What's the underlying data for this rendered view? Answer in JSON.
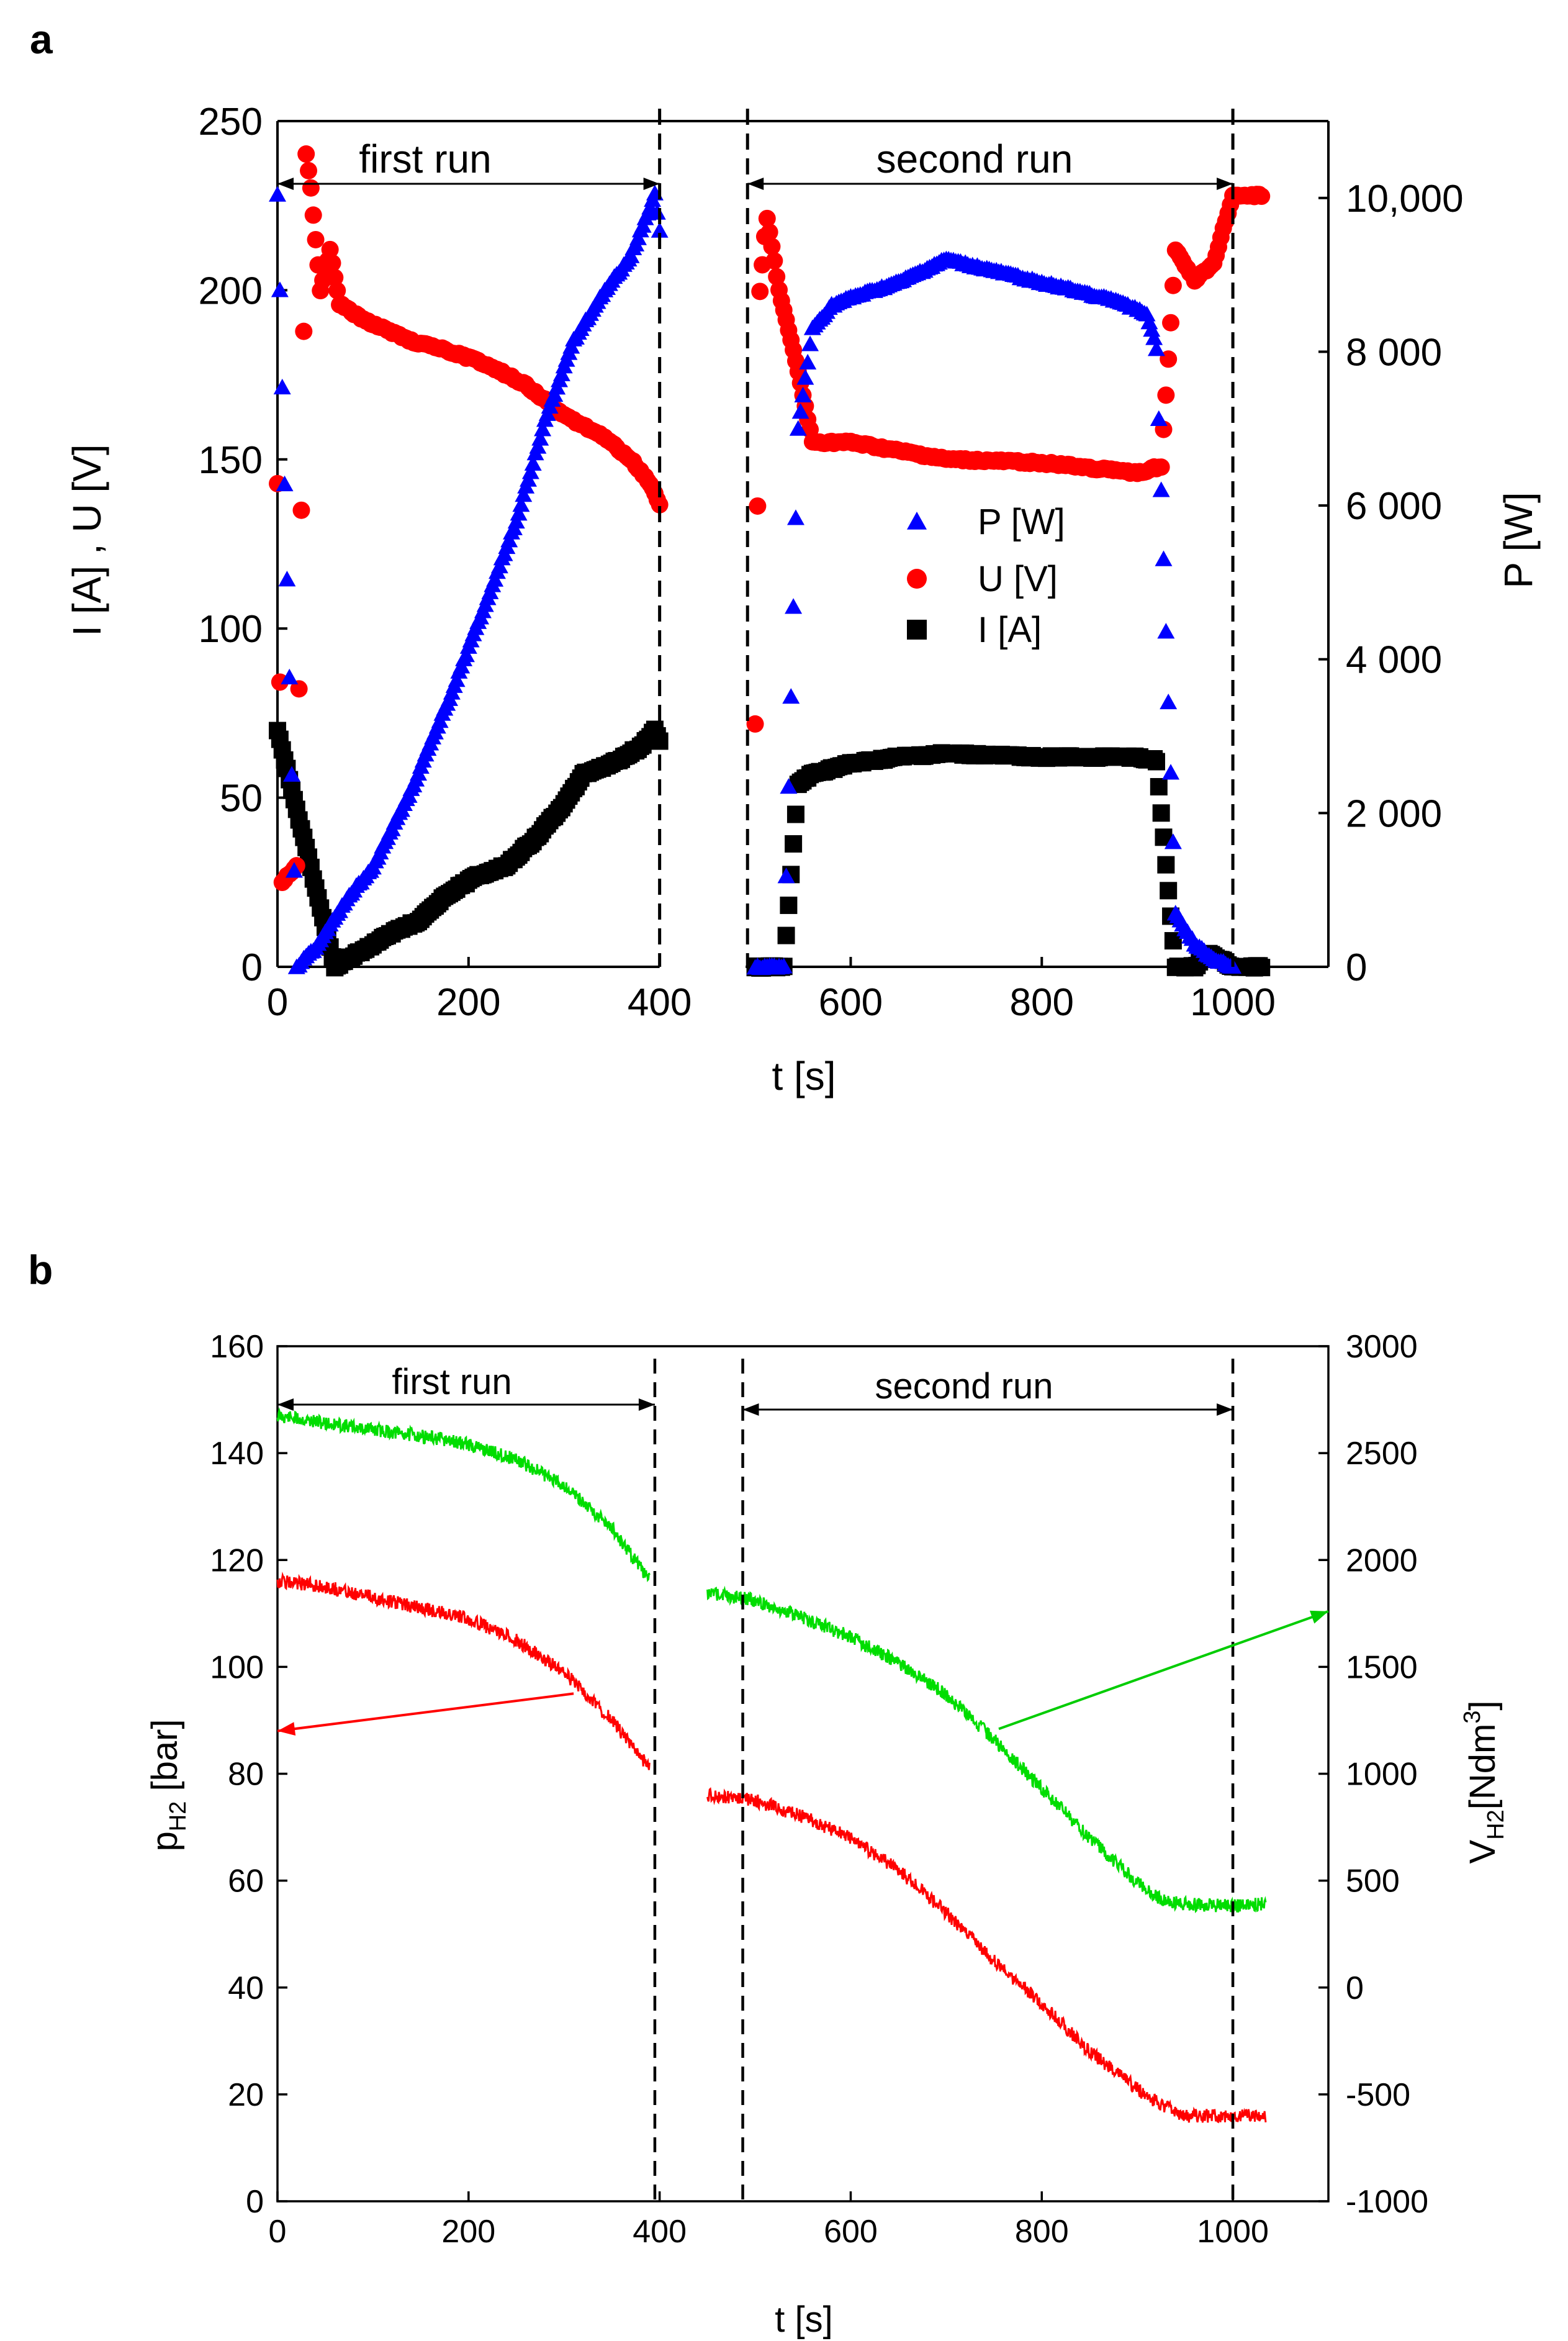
{
  "panel_labels": [
    "a",
    "b"
  ],
  "chart_data": [
    {
      "type": "scatter",
      "panel": "a",
      "title": "",
      "xlabel": "t [s]",
      "ylabel": "I [A] , U [V]",
      "y2label": "P [W]",
      "xlim": [
        0,
        1100
      ],
      "ylim": [
        0,
        250
      ],
      "y2lim": [
        0,
        11000
      ],
      "xticks": [
        "0",
        "200",
        "400",
        "600",
        "800",
        "1000"
      ],
      "yticks": [
        "0",
        "50",
        "100",
        "150",
        "200",
        "250"
      ],
      "y2ticks": [
        "0",
        "2 000",
        "4 000",
        "6 000",
        "8 000",
        "10,000"
      ],
      "legend_position": "center",
      "annotations": {
        "first_run": "first run",
        "second_run": "second run"
      },
      "run_boundaries": [
        400,
        492,
        1000
      ],
      "series": [
        {
          "name": "P [W]",
          "axis": "right",
          "color": "#0000ff",
          "marker": "triangle",
          "x": [
            0,
            20,
            40,
            60,
            80,
            100,
            140,
            180,
            220,
            250,
            280,
            310,
            340,
            370,
            395,
            500,
            530,
            545,
            560,
            580,
            600,
            650,
            700,
            750,
            800,
            850,
            880,
            910,
            920,
            940,
            960,
            980,
            1000
          ],
          "values": [
            10050,
            0,
            250,
            650,
            1000,
            1300,
            2300,
            3500,
            4800,
            5800,
            7100,
            8150,
            8750,
            9250,
            10050,
            0,
            0,
            7000,
            8300,
            8600,
            8700,
            8900,
            9200,
            9050,
            8900,
            8750,
            8650,
            8500,
            8050,
            700,
            300,
            100,
            0
          ]
        },
        {
          "name": "U [V]",
          "axis": "left",
          "color": "#ff0000",
          "marker": "circle",
          "x": [
            0,
            5,
            20,
            30,
            35,
            45,
            55,
            65,
            80,
            100,
            140,
            180,
            220,
            260,
            300,
            340,
            370,
            390,
            500,
            505,
            512,
            525,
            545,
            560,
            600,
            700,
            800,
            900,
            925,
            940,
            960,
            980,
            1000,
            1030
          ],
          "values": [
            143,
            25,
            30,
            240,
            230,
            200,
            212,
            196,
            193,
            190,
            185,
            182,
            178,
            172,
            163,
            157,
            150,
            143,
            72,
            200,
            222,
            200,
            176,
            155,
            155,
            150,
            149,
            146,
            148,
            212,
            203,
            208,
            228,
            228
          ]
        },
        {
          "name": "I [A]",
          "axis": "left",
          "color": "#000000",
          "marker": "square",
          "x": [
            0,
            60,
            90,
            120,
            150,
            180,
            210,
            240,
            270,
            300,
            320,
            350,
            380,
            395,
            500,
            530,
            545,
            560,
            600,
            650,
            700,
            800,
            900,
            920,
            940,
            960,
            975,
            1000,
            1030
          ],
          "values": [
            70,
            0,
            5,
            10,
            14,
            22,
            27,
            30,
            38,
            48,
            57,
            60,
            65,
            70,
            0,
            0,
            54,
            57,
            60,
            62,
            63,
            62,
            62,
            61,
            0,
            0,
            4,
            0,
            0
          ]
        }
      ]
    },
    {
      "type": "line",
      "panel": "b",
      "title": "",
      "xlabel": "t [s]",
      "ylabel": "p",
      "ylabel_sub": "H2",
      "ylabel_unit": " [bar]",
      "y2label": "V",
      "y2label_sub": "H2",
      "y2label_unit": "[Ndm",
      "y2label_sup": "3",
      "y2label_close": "]",
      "xlim": [
        0,
        1100
      ],
      "ylim": [
        0,
        160
      ],
      "y2lim": [
        -1000,
        3000
      ],
      "xticks": [
        "0",
        "200",
        "400",
        "600",
        "800",
        "1000"
      ],
      "yticks": [
        "0",
        "20",
        "40",
        "60",
        "80",
        "100",
        "120",
        "140",
        "160"
      ],
      "y2ticks": [
        "-1000",
        "-500",
        "0",
        "500",
        "1000",
        "1500",
        "2000",
        "2500",
        "3000"
      ],
      "annotations": {
        "first_run": "first run",
        "second_run": "second run"
      },
      "run_boundaries": [
        395,
        487,
        1000
      ],
      "series": [
        {
          "name": "V_H2 [Ndm3]",
          "axis": "right",
          "color": "#00dd00",
          "x": [
            0,
            50,
            100,
            150,
            200,
            250,
            300,
            350,
            390,
            450,
            500,
            550,
            600,
            650,
            700,
            750,
            800,
            850,
            900,
            925,
            950,
            1000,
            1035
          ],
          "values": [
            2675,
            2640,
            2610,
            2580,
            2540,
            2470,
            2350,
            2150,
            1900,
            1850,
            1810,
            1730,
            1640,
            1520,
            1370,
            1160,
            930,
            700,
            490,
            410,
            390,
            380,
            395
          ]
        },
        {
          "name": "p_H2 [bar]",
          "axis": "left",
          "color": "#ff0000",
          "x": [
            0,
            50,
            100,
            150,
            200,
            250,
            300,
            350,
            390,
            450,
            500,
            550,
            600,
            650,
            700,
            750,
            800,
            850,
            900,
            925,
            950,
            1000,
            1035
          ],
          "values": [
            116,
            115,
            113,
            111,
            109,
            105,
            99,
            90,
            81,
            76,
            75,
            72,
            68,
            62,
            54,
            45,
            37,
            28,
            21,
            18,
            16,
            16,
            16
          ]
        }
      ]
    }
  ]
}
